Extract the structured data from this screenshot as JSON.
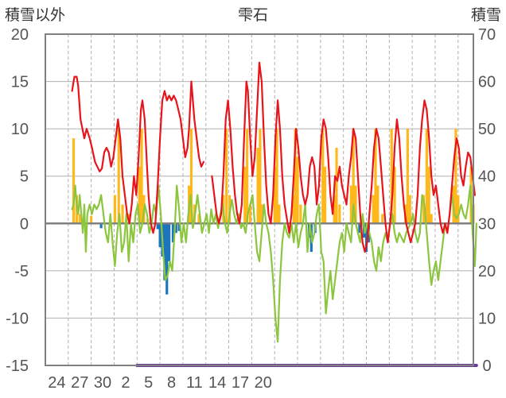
{
  "chart_data": {
    "type": "bar+line",
    "title": "雫石",
    "ylabel": "積雪以外",
    "y2label": "積雪",
    "ylim": [
      -15,
      20
    ],
    "y2lim": [
      0,
      70
    ],
    "yticks": [
      "20",
      "15",
      "10",
      "5",
      "0",
      "-5",
      "-10",
      "-15"
    ],
    "y2ticks": [
      "70",
      "60",
      "50",
      "40",
      "30",
      "20",
      "10",
      "0"
    ],
    "xticks": [
      "24",
      "27",
      "30",
      "2",
      "5",
      "8",
      "11",
      "14",
      "17",
      "20"
    ],
    "grid": "vertical dashed, horizontal solid",
    "x_day_range": [
      1,
      56
    ],
    "colors": {
      "temperature": "#e8141b",
      "precip_positive": "#ffb81c",
      "precip_negative": "#1b75bc",
      "green_series": "#8cc63f",
      "snow_depth": "#6a3d9a",
      "zero_line": "#808080",
      "grid": "#b0b0b0"
    },
    "temperature": [
      [
        4,
        14
      ],
      [
        4.3,
        15.5
      ],
      [
        4.6,
        15.5
      ],
      [
        4.8,
        14.5
      ],
      [
        5.1,
        11
      ],
      [
        5.6,
        9
      ],
      [
        5.9,
        10
      ],
      [
        6.3,
        9
      ],
      [
        6.6,
        8
      ],
      [
        7,
        6.5
      ],
      [
        7.3,
        6
      ],
      [
        7.6,
        5.5
      ],
      [
        7.9,
        5.8
      ],
      [
        8.2,
        7.5
      ],
      [
        8.5,
        8
      ],
      [
        8.8,
        7.5
      ],
      [
        9.1,
        6
      ],
      [
        9.4,
        7
      ],
      [
        9.7,
        9
      ],
      [
        10,
        11
      ],
      [
        10.3,
        9
      ],
      [
        10.6,
        5
      ],
      [
        10.9,
        3
      ],
      [
        11.2,
        1
      ],
      [
        11.5,
        0
      ],
      [
        11.8,
        2
      ],
      [
        12.1,
        5
      ],
      [
        12.4,
        3
      ],
      [
        12.7,
        7
      ],
      [
        13,
        12
      ],
      [
        13.2,
        13
      ],
      [
        13.5,
        11
      ],
      [
        13.8,
        6
      ],
      [
        14,
        3
      ],
      [
        14.3,
        0
      ],
      [
        14.6,
        -1
      ],
      [
        14.9,
        0
      ],
      [
        15.2,
        4
      ],
      [
        15.5,
        9
      ],
      [
        15.8,
        13
      ],
      [
        16.1,
        14
      ],
      [
        16.4,
        13
      ],
      [
        16.7,
        13.5
      ],
      [
        17,
        13
      ],
      [
        17.3,
        13.5
      ],
      [
        17.6,
        13
      ],
      [
        17.9,
        12
      ],
      [
        18.2,
        11
      ],
      [
        18.5,
        9
      ],
      [
        18.8,
        7
      ],
      [
        19.1,
        8
      ],
      [
        19.3,
        10
      ],
      [
        19.6,
        15
      ],
      [
        19.8,
        13
      ],
      [
        20,
        11
      ],
      [
        20.3,
        9
      ],
      [
        20.6,
        7
      ],
      [
        20.9,
        6
      ],
      [
        21.2,
        6.5
      ],
      null,
      [
        22.3,
        5
      ],
      [
        22.6,
        3
      ],
      [
        22.9,
        1
      ],
      [
        23.2,
        0
      ],
      [
        23.5,
        1
      ],
      [
        23.8,
        5
      ],
      [
        24.1,
        11
      ],
      [
        24.4,
        13
      ],
      [
        24.7,
        10
      ],
      [
        25,
        6
      ],
      [
        25.3,
        3
      ],
      [
        25.6,
        1
      ],
      [
        25.9,
        0
      ],
      [
        26.2,
        2
      ],
      [
        26.5,
        9
      ],
      [
        26.8,
        15
      ],
      [
        27,
        14
      ],
      [
        27.3,
        9
      ],
      [
        27.6,
        5
      ],
      [
        27.9,
        7
      ],
      [
        28.2,
        12
      ],
      [
        28.5,
        17
      ],
      [
        28.8,
        15
      ],
      [
        29.1,
        9
      ],
      [
        29.4,
        4
      ],
      [
        29.7,
        1
      ],
      [
        30,
        0
      ],
      [
        30.3,
        3
      ],
      [
        30.6,
        9
      ],
      [
        30.9,
        13
      ],
      [
        31.2,
        10
      ],
      [
        31.5,
        5
      ],
      [
        31.8,
        2
      ],
      [
        32.1,
        0.5
      ],
      [
        32.4,
        -1
      ],
      [
        32.7,
        1
      ],
      [
        33,
        5
      ],
      [
        33.3,
        10
      ],
      [
        33.6,
        8
      ],
      [
        33.9,
        5
      ],
      [
        34.2,
        3
      ],
      [
        34.5,
        2
      ],
      [
        34.8,
        3
      ],
      [
        35.1,
        6
      ],
      [
        35.4,
        7
      ],
      [
        35.7,
        6
      ],
      [
        36,
        2
      ],
      [
        36.3,
        4
      ],
      [
        36.6,
        9
      ],
      [
        36.9,
        11
      ],
      [
        37.2,
        10
      ],
      [
        37.5,
        7
      ],
      [
        37.8,
        3
      ],
      [
        38.1,
        1
      ],
      [
        38.4,
        5
      ],
      [
        38.7,
        4.5
      ],
      [
        39,
        6
      ],
      [
        39.3,
        4
      ],
      [
        39.6,
        3
      ],
      [
        39.9,
        2
      ],
      [
        40.2,
        5
      ],
      [
        40.5,
        7
      ],
      [
        40.8,
        10
      ],
      [
        41.1,
        9
      ],
      [
        41.4,
        5
      ],
      [
        41.7,
        1
      ],
      [
        42,
        -2
      ],
      [
        42.3,
        -3
      ],
      [
        42.6,
        -2
      ],
      [
        42.9,
        1
      ],
      [
        43.2,
        4
      ],
      [
        43.5,
        8
      ],
      [
        43.8,
        10
      ],
      [
        44.1,
        9
      ],
      [
        44.4,
        6
      ],
      [
        44.7,
        3
      ],
      [
        45,
        0
      ],
      [
        45.3,
        -2
      ],
      [
        45.6,
        0
      ],
      [
        45.9,
        3
      ],
      [
        46.2,
        8
      ],
      [
        46.5,
        11
      ],
      [
        46.8,
        9
      ],
      [
        47.1,
        5
      ],
      [
        47.4,
        2
      ],
      [
        47.7,
        0
      ],
      [
        48,
        -1
      ],
      [
        48.3,
        -2
      ],
      [
        48.6,
        -1
      ],
      [
        48.9,
        0
      ],
      [
        49.2,
        3
      ],
      [
        49.5,
        8
      ],
      [
        49.8,
        11
      ],
      [
        50.1,
        13
      ],
      [
        50.4,
        12
      ],
      [
        50.7,
        9
      ],
      [
        51,
        5
      ],
      [
        51.3,
        3
      ],
      [
        51.6,
        4
      ],
      [
        51.9,
        2
      ],
      [
        52.2,
        0
      ],
      [
        52.5,
        -1
      ],
      [
        52.8,
        0
      ],
      [
        53.1,
        -1
      ],
      [
        53.4,
        1
      ],
      [
        53.7,
        4
      ],
      [
        54,
        7
      ],
      [
        54.3,
        9
      ],
      [
        54.6,
        8
      ],
      [
        54.9,
        5
      ],
      [
        55.2,
        4
      ],
      [
        55.5,
        6
      ],
      [
        55.8,
        7.5
      ],
      [
        56.1,
        7
      ],
      [
        56.4,
        5
      ],
      [
        56.7,
        3
      ]
    ],
    "precipitation": [
      [
        4.2,
        9
      ],
      [
        4.6,
        3
      ],
      [
        5,
        1
      ],
      [
        6.5,
        0.8
      ],
      [
        7.8,
        -0.5
      ],
      [
        9.6,
        3
      ],
      [
        10.1,
        10
      ],
      [
        10.6,
        2
      ],
      [
        11.5,
        1
      ],
      [
        12.8,
        6
      ],
      [
        13.1,
        10
      ],
      [
        13.4,
        3
      ],
      [
        13.9,
        0.5
      ],
      [
        15.2,
        -0.6
      ],
      [
        15.5,
        -2.5
      ],
      [
        15.8,
        -3.5
      ],
      [
        16.1,
        -6
      ],
      [
        16.4,
        -7.5
      ],
      [
        16.7,
        -4
      ],
      [
        17.2,
        -2
      ],
      [
        17.6,
        -1
      ],
      [
        18,
        -0.8
      ],
      [
        19.3,
        4
      ],
      [
        19.6,
        10
      ],
      [
        20,
        2
      ],
      [
        20.6,
        1
      ],
      [
        23.8,
        3
      ],
      [
        24.2,
        10
      ],
      [
        24.6,
        3
      ],
      [
        26.6,
        6
      ],
      [
        26.9,
        10
      ],
      [
        27.3,
        2
      ],
      [
        28.3,
        8
      ],
      [
        28.6,
        10
      ],
      [
        28.9,
        2
      ],
      [
        30.5,
        6
      ],
      [
        30.8,
        10
      ],
      [
        31.1,
        2
      ],
      [
        33,
        3
      ],
      [
        33.2,
        10
      ],
      [
        33.5,
        7
      ],
      [
        33.9,
        2
      ],
      [
        35,
        -1.5
      ],
      [
        35.3,
        -3
      ],
      [
        35.8,
        -1
      ],
      [
        36.8,
        10
      ],
      [
        37.1,
        6
      ],
      [
        38.3,
        3
      ],
      [
        38.6,
        8
      ],
      [
        39,
        2
      ],
      [
        40.5,
        4
      ],
      [
        40.8,
        10
      ],
      [
        41.1,
        4
      ],
      [
        41.6,
        -1
      ],
      [
        42.2,
        -1.5
      ],
      [
        42.5,
        -3
      ],
      [
        42.8,
        -2
      ],
      [
        43.4,
        3
      ],
      [
        43.7,
        10
      ],
      [
        44,
        4
      ],
      [
        44.6,
        1
      ],
      [
        45.8,
        10
      ],
      [
        46.2,
        6
      ],
      [
        47.6,
        2
      ],
      [
        47.9,
        10
      ],
      [
        48.2,
        3
      ],
      [
        50,
        3
      ],
      [
        50.4,
        10
      ],
      [
        50.7,
        6
      ],
      [
        51,
        1
      ],
      [
        53.9,
        4
      ],
      [
        54.2,
        10
      ],
      [
        54.5,
        3
      ],
      [
        56.2,
        6
      ],
      [
        56.5,
        2
      ]
    ],
    "green_series": [
      [
        4,
        1.5
      ],
      [
        4.2,
        2
      ],
      [
        4.4,
        4
      ],
      [
        4.6,
        2
      ],
      [
        4.8,
        1
      ],
      [
        5,
        3
      ],
      [
        5.2,
        1
      ],
      [
        5.4,
        -1
      ],
      [
        5.6,
        2
      ],
      [
        5.8,
        -3
      ],
      [
        6,
        1
      ],
      [
        6.3,
        2
      ],
      [
        6.6,
        1
      ],
      [
        6.9,
        2
      ],
      [
        7.2,
        1.5
      ],
      [
        7.5,
        2
      ],
      [
        7.8,
        3
      ],
      [
        8.1,
        1
      ],
      [
        8.4,
        -1
      ],
      [
        8.7,
        -2
      ],
      [
        9,
        1
      ],
      [
        9.3,
        -2
      ],
      [
        9.6,
        -4.5
      ],
      [
        9.9,
        -1
      ],
      [
        10.2,
        1
      ],
      [
        10.5,
        -3
      ],
      [
        10.8,
        -2
      ],
      [
        11.1,
        1
      ],
      [
        11.4,
        -4
      ],
      [
        11.7,
        0
      ],
      [
        12,
        -2
      ],
      [
        12.3,
        1
      ],
      [
        12.6,
        2
      ],
      [
        12.9,
        -1
      ],
      [
        13.2,
        0
      ],
      [
        13.5,
        2
      ],
      [
        13.8,
        1
      ],
      [
        14.1,
        -1
      ],
      [
        14.4,
        0
      ],
      [
        14.7,
        2
      ],
      [
        15,
        1
      ],
      [
        15.3,
        4
      ],
      [
        15.6,
        1
      ],
      [
        15.9,
        -3
      ],
      [
        16.2,
        -6
      ],
      [
        16.5,
        -5.5
      ],
      [
        16.8,
        -4
      ],
      [
        17.1,
        -5
      ],
      [
        17.4,
        -1
      ],
      [
        17.7,
        4
      ],
      [
        18,
        1.5
      ],
      [
        18.3,
        -2
      ],
      [
        18.6,
        0
      ],
      [
        18.9,
        -2
      ],
      [
        19.2,
        1
      ],
      [
        19.5,
        3
      ],
      [
        19.8,
        -0.5
      ],
      [
        20.1,
        1
      ],
      [
        20.4,
        3
      ],
      [
        20.7,
        1
      ],
      [
        21,
        -1
      ],
      [
        21.3,
        0
      ],
      [
        21.6,
        1
      ],
      [
        21.9,
        -1
      ],
      [
        22.2,
        1.5
      ],
      [
        22.5,
        0
      ],
      [
        22.8,
        1
      ],
      [
        23.1,
        -0.5
      ],
      [
        23.4,
        1
      ],
      [
        23.7,
        2
      ],
      [
        24,
        0
      ],
      [
        24.3,
        -1
      ],
      [
        24.6,
        1
      ],
      [
        24.9,
        2.5
      ],
      [
        25.2,
        1
      ],
      [
        25.5,
        0
      ],
      [
        25.8,
        1
      ],
      [
        26.1,
        -0.5
      ],
      [
        26.4,
        0
      ],
      [
        26.7,
        -1
      ],
      [
        27,
        1
      ],
      [
        27.3,
        2
      ],
      [
        27.6,
        3
      ],
      [
        27.9,
        0
      ],
      [
        28.2,
        -3
      ],
      [
        28.5,
        -4
      ],
      [
        28.8,
        -1
      ],
      [
        29.1,
        2
      ],
      [
        29.4,
        0
      ],
      [
        29.7,
        -1
      ],
      [
        30,
        -3
      ],
      [
        30.3,
        -6
      ],
      [
        30.6,
        -10
      ],
      [
        30.9,
        -12.5
      ],
      [
        31.2,
        -6
      ],
      [
        31.5,
        -2
      ],
      [
        31.8,
        0
      ],
      [
        32.1,
        -1
      ],
      [
        32.4,
        -1.5
      ],
      [
        32.7,
        0
      ],
      [
        33,
        -2
      ],
      [
        33.3,
        0
      ],
      [
        33.6,
        -2.5
      ],
      [
        33.9,
        -1
      ],
      [
        34.2,
        0
      ],
      [
        34.5,
        2
      ],
      [
        34.8,
        -3
      ],
      [
        35.1,
        0
      ],
      [
        35.4,
        -2
      ],
      [
        35.7,
        -1
      ],
      [
        36,
        1
      ],
      [
        36.3,
        2
      ],
      [
        36.6,
        -3
      ],
      [
        36.9,
        -4
      ],
      [
        37.2,
        -9.5
      ],
      [
        37.5,
        -7
      ],
      [
        37.8,
        -5
      ],
      [
        38.1,
        -8
      ],
      [
        38.4,
        -6
      ],
      [
        38.7,
        -4
      ],
      [
        39,
        -2
      ],
      [
        39.3,
        -1
      ],
      [
        39.6,
        -3
      ],
      [
        39.9,
        0
      ],
      [
        40.2,
        -1
      ],
      [
        40.5,
        -2
      ],
      [
        40.8,
        2
      ],
      [
        41.1,
        0
      ],
      [
        41.4,
        -1
      ],
      [
        41.7,
        -2
      ],
      [
        42,
        1
      ],
      [
        42.3,
        -1
      ],
      [
        42.6,
        0
      ],
      [
        42.9,
        -1
      ],
      [
        43.2,
        -2
      ],
      [
        43.5,
        -4
      ],
      [
        43.8,
        -5
      ],
      [
        44.1,
        -2.5
      ],
      [
        44.4,
        -4
      ],
      [
        44.7,
        -2
      ],
      [
        45,
        -1
      ],
      [
        45.3,
        -2
      ],
      [
        45.6,
        0
      ],
      [
        45.9,
        1
      ],
      [
        46.2,
        -1
      ],
      [
        46.5,
        -2
      ],
      [
        46.8,
        -1
      ],
      [
        47.1,
        -1.5
      ],
      [
        47.4,
        -2
      ],
      [
        47.7,
        -1
      ],
      [
        48,
        -0.5
      ],
      [
        48.3,
        0
      ],
      [
        48.6,
        1
      ],
      [
        48.9,
        -1
      ],
      [
        49.2,
        -2
      ],
      [
        49.5,
        -1
      ],
      [
        49.8,
        3
      ],
      [
        50.1,
        2
      ],
      [
        50.4,
        -1
      ],
      [
        50.7,
        -4
      ],
      [
        51,
        -6.5
      ],
      [
        51.3,
        -5
      ],
      [
        51.6,
        -4
      ],
      [
        51.9,
        -6
      ],
      [
        52.2,
        -4
      ],
      [
        52.5,
        -2
      ],
      [
        52.8,
        0
      ],
      [
        53.1,
        -1
      ],
      [
        53.4,
        1
      ],
      [
        53.7,
        3
      ],
      [
        54,
        1
      ],
      [
        54.3,
        0.5
      ],
      [
        54.6,
        1
      ],
      [
        54.9,
        2
      ],
      [
        55.2,
        1
      ],
      [
        55.5,
        0.5
      ],
      [
        55.8,
        2
      ],
      [
        56.1,
        4
      ],
      [
        56.4,
        -1
      ],
      [
        56.7,
        -4.5
      ],
      [
        56.9,
        0
      ]
    ],
    "snow_depth": [
      [
        12.5,
        0
      ],
      [
        56.9,
        0
      ]
    ]
  }
}
